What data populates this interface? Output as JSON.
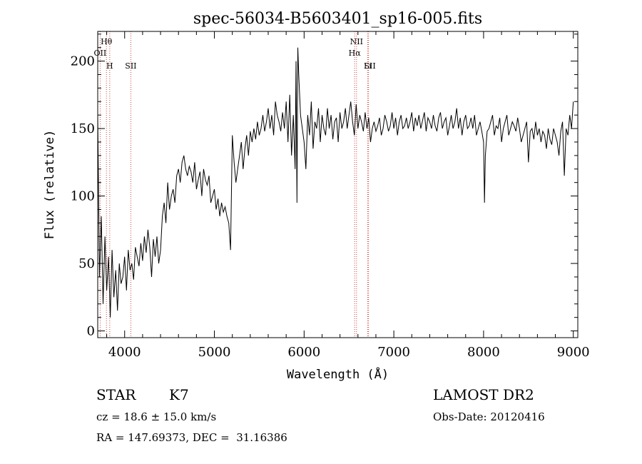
{
  "chart_data": {
    "type": "line",
    "title": "spec-56034-B5603401_sp16-005.fits",
    "xlabel": "Wavelength (Å)",
    "ylabel": "Flux (relative)",
    "xlim": [
      3700,
      9050
    ],
    "ylim": [
      -5,
      222
    ],
    "xticks": [
      4000,
      5000,
      6000,
      7000,
      8000,
      9000
    ],
    "yticks": [
      0,
      50,
      100,
      150,
      200
    ],
    "x_tick_labels": [
      "4000",
      "5000",
      "6000",
      "7000",
      "8000",
      "9000"
    ],
    "y_tick_labels": [
      "0",
      "50",
      "100",
      "150",
      "200"
    ],
    "grid": false,
    "line_color": "#000000",
    "marker_color": "#d04040",
    "series": [
      {
        "x": [
          3700,
          3720,
          3740,
          3760,
          3780,
          3800,
          3820,
          3840,
          3860,
          3880,
          3900,
          3920,
          3940,
          3960,
          3980,
          4000,
          4020,
          4040,
          4060,
          4080,
          4100,
          4120,
          4140,
          4160,
          4180,
          4200,
          4220,
          4240,
          4260,
          4280,
          4300,
          4320,
          4340,
          4360,
          4380,
          4400,
          4420,
          4440,
          4460,
          4480,
          4500,
          4520,
          4540,
          4560,
          4580,
          4600,
          4620,
          4640,
          4660,
          4680,
          4700,
          4720,
          4740,
          4760,
          4780,
          4800,
          4820,
          4840,
          4860,
          4880,
          4900,
          4920,
          4940,
          4960,
          4980,
          5000,
          5020,
          5040,
          5060,
          5080,
          5100,
          5120,
          5140,
          5160,
          5180,
          5200,
          5220,
          5240,
          5260,
          5280,
          5300,
          5320,
          5340,
          5360,
          5380,
          5400,
          5420,
          5440,
          5460,
          5480,
          5500,
          5520,
          5540,
          5560,
          5580,
          5600,
          5620,
          5640,
          5660,
          5680,
          5700,
          5720,
          5740,
          5760,
          5780,
          5800,
          5820,
          5840,
          5860,
          5880,
          5900,
          5910,
          5920,
          5930,
          5940,
          5960,
          5980,
          6000,
          6020,
          6040,
          6060,
          6080,
          6100,
          6120,
          6140,
          6160,
          6180,
          6200,
          6220,
          6240,
          6260,
          6280,
          6300,
          6320,
          6340,
          6360,
          6380,
          6400,
          6420,
          6440,
          6460,
          6480,
          6500,
          6520,
          6540,
          6560,
          6580,
          6600,
          6620,
          6640,
          6660,
          6680,
          6700,
          6720,
          6740,
          6760,
          6780,
          6800,
          6820,
          6840,
          6860,
          6880,
          6900,
          6920,
          6940,
          6960,
          6980,
          7000,
          7020,
          7040,
          7060,
          7080,
          7100,
          7120,
          7140,
          7160,
          7180,
          7200,
          7220,
          7240,
          7260,
          7280,
          7300,
          7320,
          7340,
          7360,
          7380,
          7400,
          7420,
          7440,
          7460,
          7480,
          7500,
          7520,
          7540,
          7560,
          7580,
          7600,
          7620,
          7640,
          7660,
          7680,
          7700,
          7720,
          7740,
          7760,
          7780,
          7800,
          7820,
          7840,
          7860,
          7880,
          7900,
          7920,
          7940,
          7960,
          7980,
          8000,
          8010,
          8020,
          8040,
          8060,
          8080,
          8100,
          8120,
          8140,
          8160,
          8180,
          8200,
          8220,
          8240,
          8260,
          8280,
          8300,
          8320,
          8340,
          8360,
          8380,
          8400,
          8420,
          8440,
          8460,
          8480,
          8500,
          8520,
          8540,
          8560,
          8580,
          8600,
          8620,
          8640,
          8660,
          8680,
          8700,
          8720,
          8740,
          8760,
          8780,
          8800,
          8820,
          8840,
          8860,
          8880,
          8900,
          8920,
          8940,
          8960,
          8980,
          9000
        ],
        "y": [
          160,
          40,
          85,
          20,
          70,
          30,
          55,
          10,
          60,
          25,
          45,
          15,
          50,
          35,
          40,
          55,
          30,
          60,
          45,
          50,
          38,
          62,
          55,
          48,
          65,
          52,
          70,
          58,
          75,
          62,
          40,
          68,
          55,
          70,
          50,
          60,
          85,
          95,
          80,
          110,
          90,
          100,
          105,
          95,
          115,
          120,
          110,
          125,
          130,
          120,
          115,
          122,
          118,
          110,
          125,
          105,
          112,
          118,
          100,
          120,
          112,
          108,
          115,
          95,
          100,
          105,
          90,
          98,
          85,
          95,
          88,
          92,
          85,
          80,
          60,
          145,
          125,
          110,
          120,
          130,
          140,
          120,
          135,
          145,
          130,
          148,
          140,
          150,
          142,
          155,
          145,
          150,
          160,
          148,
          155,
          165,
          150,
          160,
          145,
          170,
          160,
          155,
          148,
          162,
          150,
          170,
          140,
          175,
          130,
          160,
          120,
          200,
          95,
          210,
          190,
          160,
          150,
          140,
          120,
          160,
          145,
          170,
          135,
          155,
          150,
          165,
          140,
          160,
          150,
          145,
          165,
          150,
          160,
          142,
          155,
          158,
          140,
          162,
          150,
          155,
          165,
          150,
          160,
          170,
          155,
          145,
          168,
          150,
          160,
          155,
          148,
          162,
          150,
          158,
          140,
          150,
          155,
          148,
          152,
          158,
          145,
          150,
          160,
          155,
          148,
          152,
          162,
          150,
          158,
          145,
          155,
          160,
          150,
          152,
          158,
          150,
          155,
          162,
          148,
          158,
          152,
          160,
          150,
          156,
          162,
          148,
          158,
          155,
          150,
          160,
          152,
          148,
          158,
          162,
          150,
          155,
          158,
          145,
          152,
          160,
          150,
          155,
          165,
          150,
          158,
          145,
          155,
          160,
          150,
          152,
          158,
          150,
          160,
          145,
          150,
          155,
          148,
          140,
          95,
          130,
          148,
          150,
          155,
          160,
          145,
          152,
          150,
          158,
          140,
          150,
          155,
          160,
          145,
          150,
          155,
          152,
          148,
          158,
          150,
          140,
          145,
          150,
          155,
          125,
          148,
          150,
          142,
          155,
          145,
          150,
          140,
          148,
          145,
          135,
          150,
          142,
          138,
          150,
          145,
          140,
          130,
          148,
          155,
          115,
          150,
          145,
          160,
          150,
          170
        ]
      }
    ],
    "line_markers": [
      {
        "label": "Hθ",
        "x": 3797
      },
      {
        "label": "OII",
        "x": 3727
      },
      {
        "label": "H",
        "x": 3834
      },
      {
        "label": "SII",
        "x": 4069
      },
      {
        "label": "NII",
        "x": 6584
      },
      {
        "label": "Hα",
        "x": 6563
      },
      {
        "label": "SII",
        "x": 6718
      },
      {
        "label": "Li",
        "x": 6708
      }
    ]
  },
  "object_class": "STAR",
  "subclass": "K7",
  "survey": "LAMOST DR2",
  "redshift_text": "cz = 18.6 ± 15.0 km/s",
  "obs_date_text": "Obs-Date: 20120416",
  "coords_text": "RA = 147.69373, DEC =  31.16386"
}
